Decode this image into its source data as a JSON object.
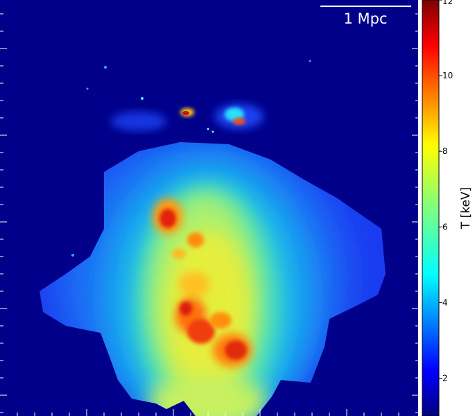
{
  "scale_bar": {
    "label": "1 Mpc"
  },
  "colorbar": {
    "label": "T [keV]",
    "ticks": [
      "2",
      "4",
      "6",
      "8",
      "10",
      "12"
    ],
    "tick_values": [
      2,
      4,
      6,
      8,
      10,
      12
    ],
    "vmin": 1.0,
    "vmax": 12.0,
    "colormap": "jet"
  },
  "colors": {
    "background": "#00008b",
    "frame": "#ffffff"
  }
}
